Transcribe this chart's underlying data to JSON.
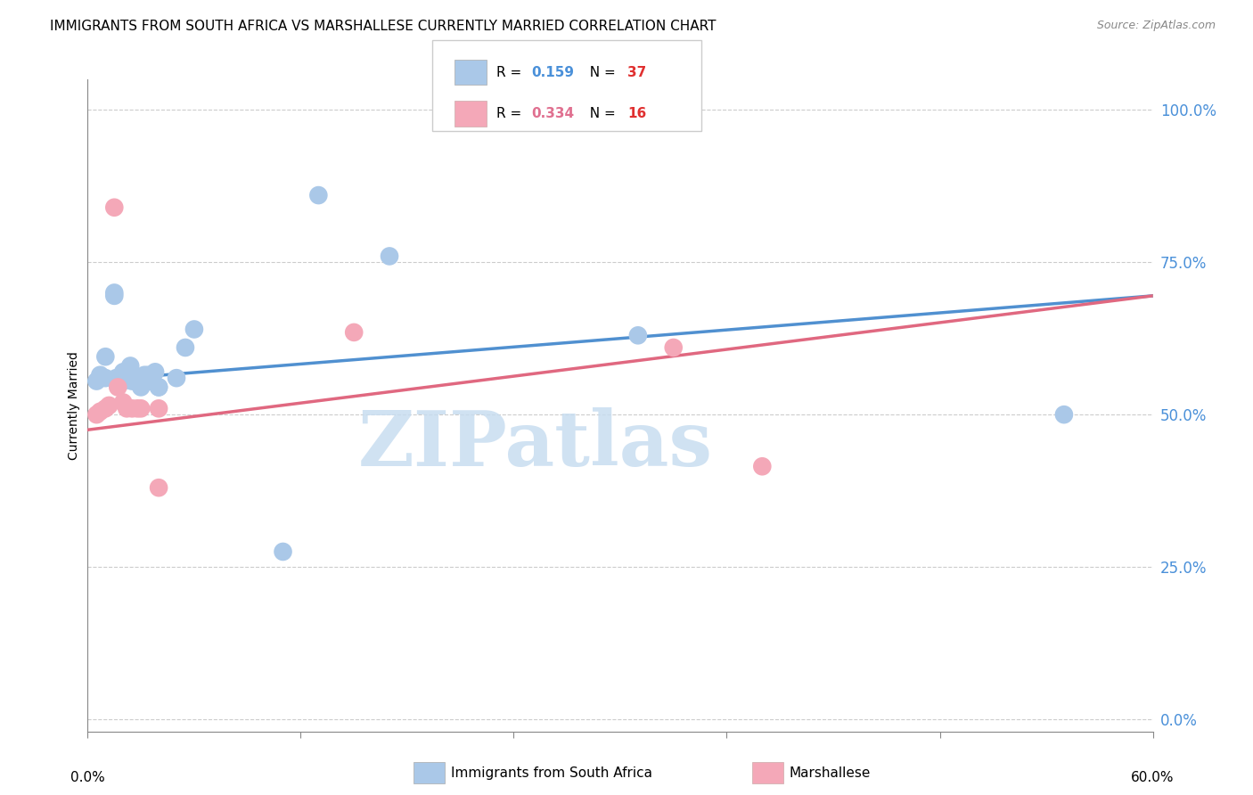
{
  "title": "IMMIGRANTS FROM SOUTH AFRICA VS MARSHALLESE CURRENTLY MARRIED CORRELATION CHART",
  "source": "Source: ZipAtlas.com",
  "ylabel": "Currently Married",
  "ytick_values": [
    0.0,
    0.25,
    0.5,
    0.75,
    1.0
  ],
  "xlim": [
    0.0,
    0.6
  ],
  "ylim": [
    -0.02,
    1.05
  ],
  "blue_color": "#aac8e8",
  "pink_color": "#f4a8b8",
  "blue_line_color": "#5090d0",
  "pink_line_color": "#e06880",
  "legend_r_color1": "#4a90d9",
  "legend_r_color2": "#e07090",
  "legend_n_color": "#e03030",
  "watermark_color": "#c8ddf0",
  "grid_color": "#cccccc",
  "background_color": "#ffffff",
  "title_fontsize": 11,
  "axis_label_fontsize": 10,
  "tick_fontsize": 11,
  "source_fontsize": 9,
  "blue_points_x": [
    0.005,
    0.007,
    0.01,
    0.01,
    0.015,
    0.015,
    0.016,
    0.017,
    0.018,
    0.02,
    0.02,
    0.02,
    0.022,
    0.024,
    0.025,
    0.025,
    0.027,
    0.028,
    0.03,
    0.03,
    0.03,
    0.032,
    0.034,
    0.036,
    0.038,
    0.04,
    0.04,
    0.05,
    0.055,
    0.06,
    0.11,
    0.13,
    0.17,
    0.31,
    0.55
  ],
  "blue_points_y": [
    0.555,
    0.565,
    0.56,
    0.595,
    0.7,
    0.695,
    0.56,
    0.555,
    0.555,
    0.555,
    0.56,
    0.57,
    0.56,
    0.58,
    0.555,
    0.565,
    0.555,
    0.555,
    0.545,
    0.555,
    0.56,
    0.565,
    0.565,
    0.555,
    0.57,
    0.545,
    0.545,
    0.56,
    0.61,
    0.64,
    0.275,
    0.86,
    0.76,
    0.63,
    0.5
  ],
  "pink_points_x": [
    0.005,
    0.007,
    0.01,
    0.012,
    0.015,
    0.017,
    0.02,
    0.022,
    0.025,
    0.028,
    0.03,
    0.04,
    0.04,
    0.15,
    0.33,
    0.38
  ],
  "pink_points_y": [
    0.5,
    0.505,
    0.51,
    0.515,
    0.84,
    0.545,
    0.52,
    0.51,
    0.51,
    0.51,
    0.51,
    0.51,
    0.38,
    0.635,
    0.61,
    0.415
  ],
  "blue_line_x0": 0.0,
  "blue_line_y0": 0.555,
  "blue_line_x1": 0.6,
  "blue_line_y1": 0.695,
  "pink_line_x0": 0.0,
  "pink_line_y0": 0.475,
  "pink_line_x1": 0.6,
  "pink_line_y1": 0.695
}
